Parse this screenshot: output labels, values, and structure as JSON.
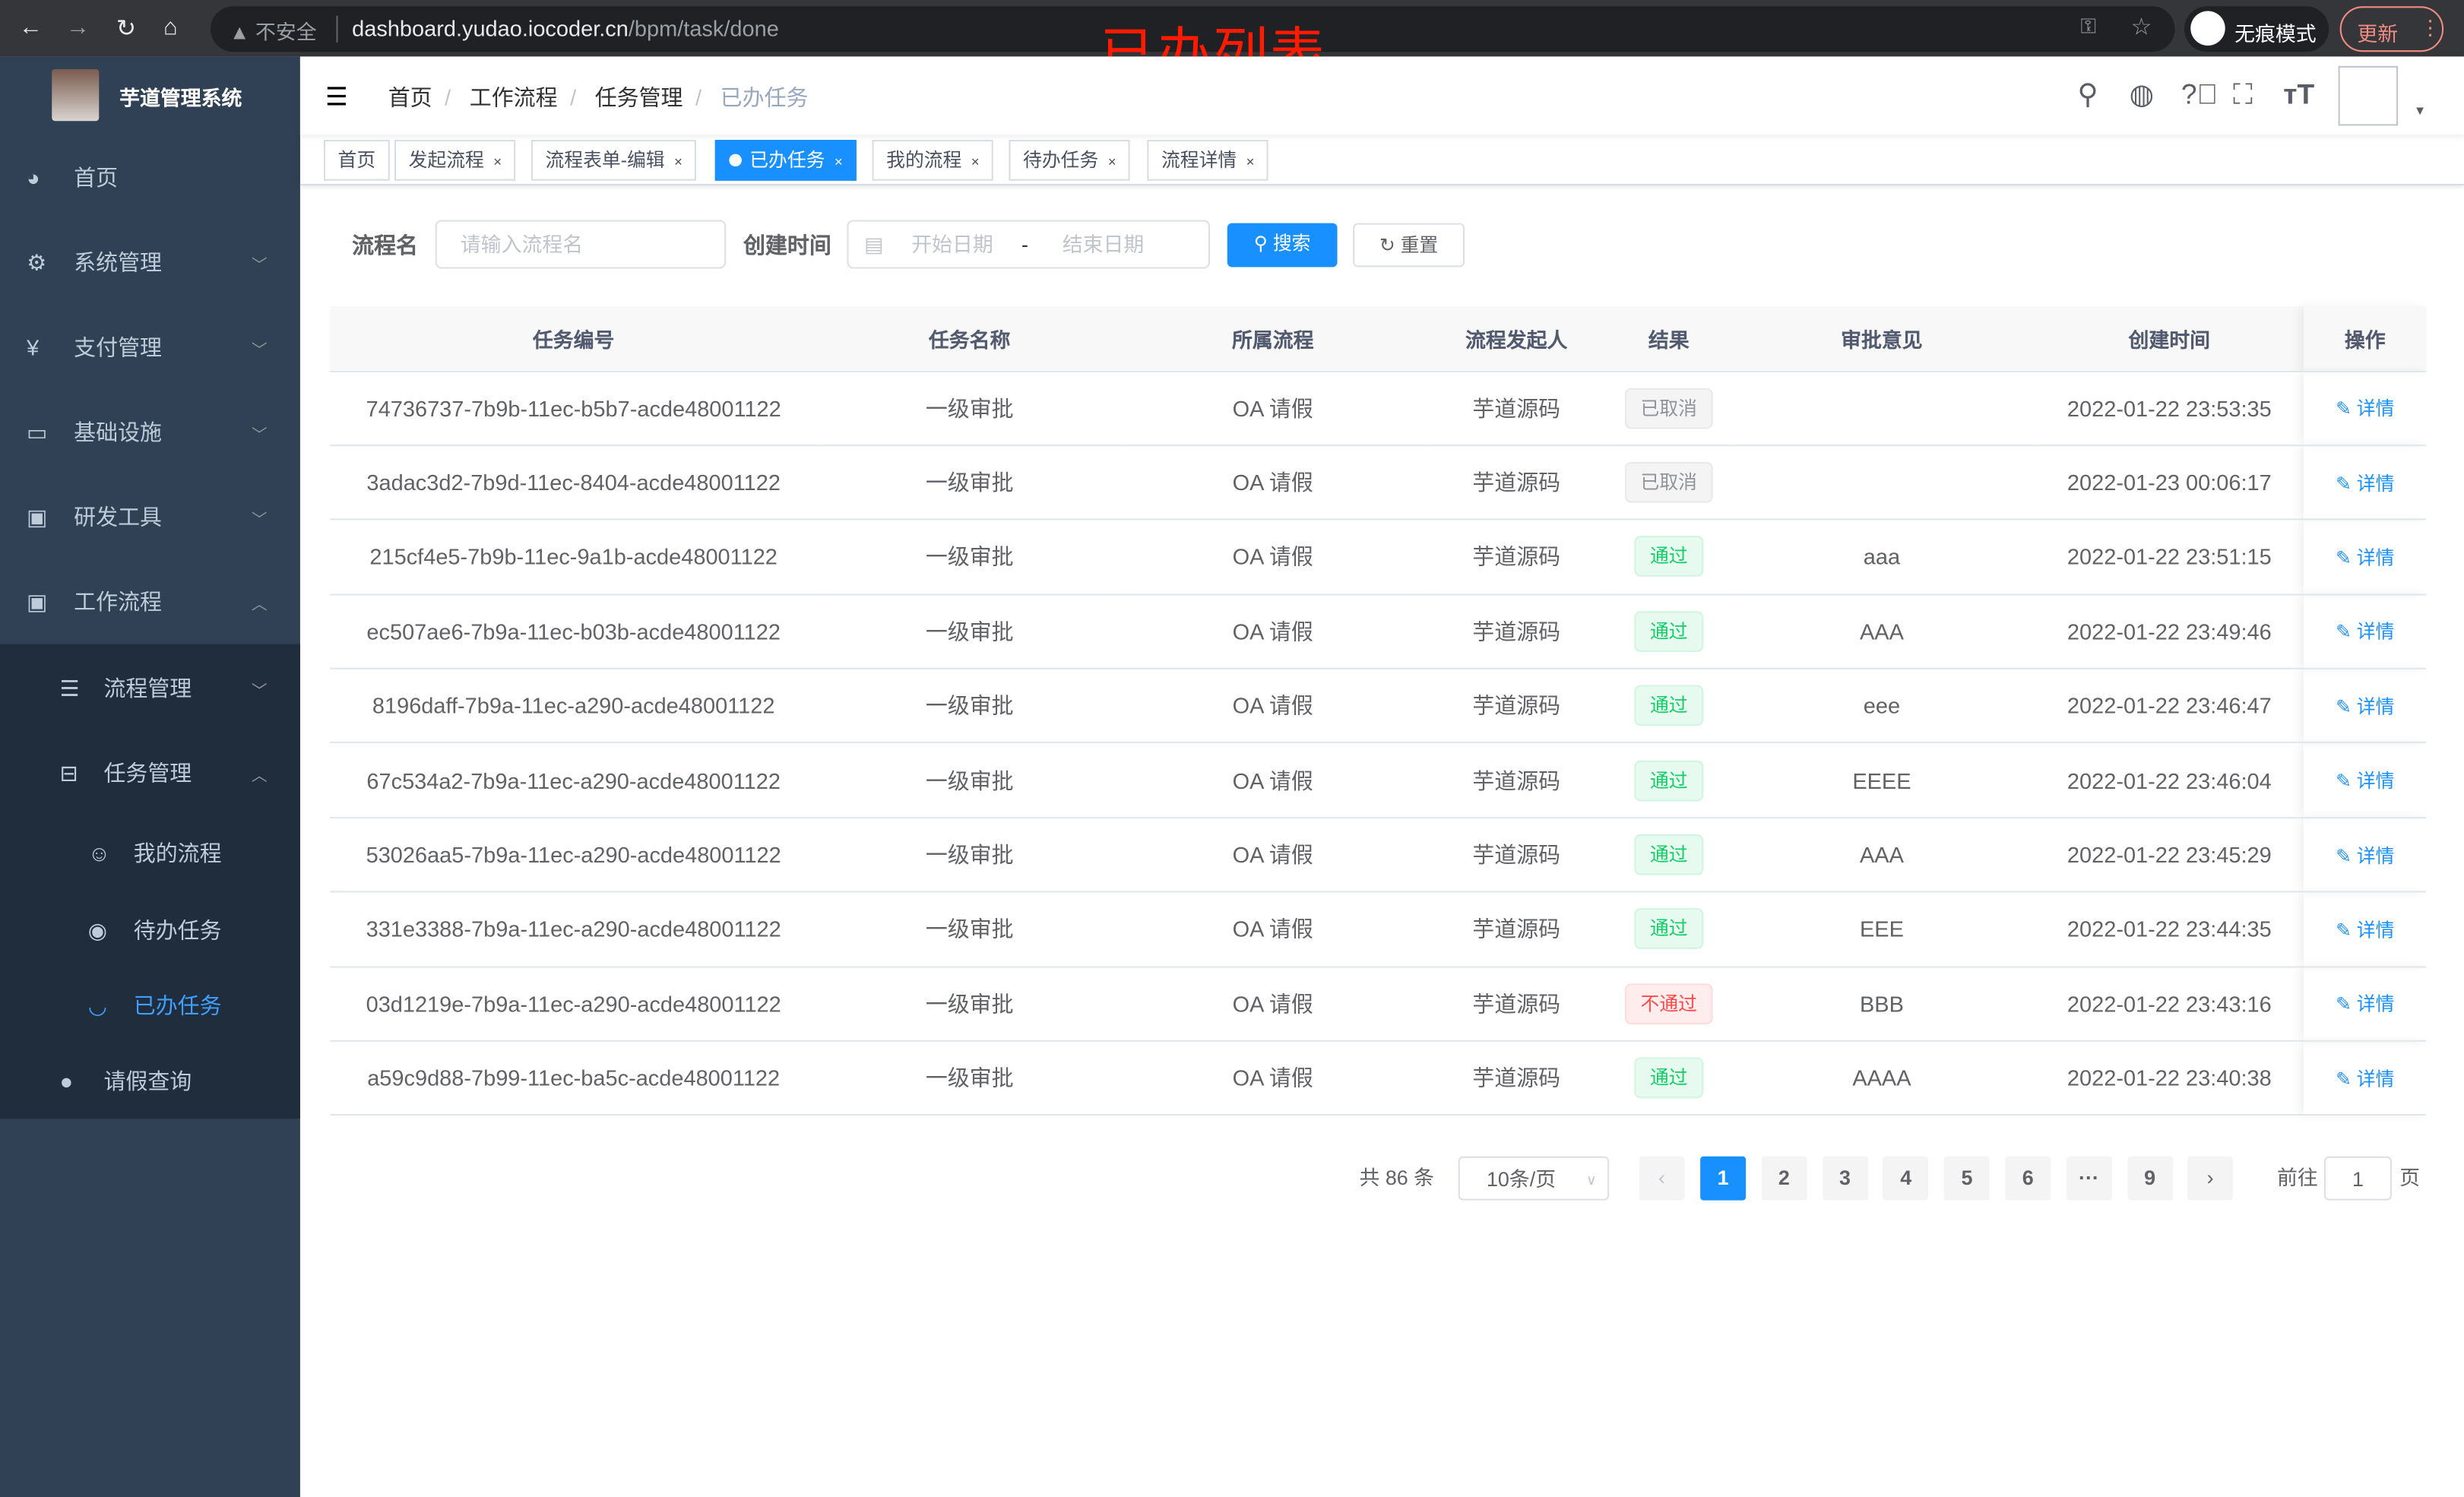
{
  "browser": {
    "security": "不安全",
    "url_host": "dashboard.yudao.iocoder.cn",
    "url_path": "/bpm/task/done",
    "incognito": "无痕模式",
    "update": "更新"
  },
  "overlay_caption": "已办列表",
  "sidebar": {
    "title": "芋道管理系统",
    "items": [
      {
        "label": "首页",
        "icon": "dashboard-icon"
      },
      {
        "label": "系统管理",
        "icon": "gear-icon"
      },
      {
        "label": "支付管理",
        "icon": "yen-icon"
      },
      {
        "label": "基础设施",
        "icon": "monitor-icon"
      },
      {
        "label": "研发工具",
        "icon": "toolbox-icon"
      },
      {
        "label": "工作流程",
        "icon": "toolbox-icon"
      }
    ],
    "sub": [
      {
        "label": "流程管理",
        "icon": "list-icon"
      },
      {
        "label": "任务管理",
        "icon": "tree-icon"
      },
      {
        "label": "我的流程",
        "icon": "people-icon"
      },
      {
        "label": "待办任务",
        "icon": "eye-icon"
      },
      {
        "label": "已办任务",
        "icon": "closed-eye-icon"
      },
      {
        "label": "请假查询",
        "icon": "user-icon"
      }
    ],
    "active": "已办任务"
  },
  "breadcrumb": [
    "首页",
    "工作流程",
    "任务管理",
    "已办任务"
  ],
  "tags": [
    {
      "label": "首页"
    },
    {
      "label": "发起流程"
    },
    {
      "label": "流程表单-编辑"
    },
    {
      "label": "已办任务",
      "active": true
    },
    {
      "label": "我的流程"
    },
    {
      "label": "待办任务"
    },
    {
      "label": "流程详情"
    }
  ],
  "filter": {
    "name_label": "流程名",
    "name_placeholder": "请输入流程名",
    "time_label": "创建时间",
    "start_placeholder": "开始日期",
    "range_sep": "-",
    "end_placeholder": "结束日期",
    "search": "搜索",
    "reset": "重置"
  },
  "table": {
    "headers": [
      "任务编号",
      "任务名称",
      "所属流程",
      "流程发起人",
      "结果",
      "审批意见",
      "创建时间",
      "操作"
    ],
    "rows": [
      {
        "id": "74736737-7b9b-11ec-b5b7-acde48001122",
        "name": "一级审批",
        "process": "OA 请假",
        "starter": "芋道源码",
        "result": "已取消",
        "status": "cancel",
        "comment": "",
        "time": "2022-01-22 23:53:35",
        "action": "详情"
      },
      {
        "id": "3adac3d2-7b9d-11ec-8404-acde48001122",
        "name": "一级审批",
        "process": "OA 请假",
        "starter": "芋道源码",
        "result": "已取消",
        "status": "cancel",
        "comment": "",
        "time": "2022-01-23 00:06:17",
        "action": "详情"
      },
      {
        "id": "215cf4e5-7b9b-11ec-9a1b-acde48001122",
        "name": "一级审批",
        "process": "OA 请假",
        "starter": "芋道源码",
        "result": "通过",
        "status": "pass",
        "comment": "aaa",
        "time": "2022-01-22 23:51:15",
        "action": "详情"
      },
      {
        "id": "ec507ae6-7b9a-11ec-b03b-acde48001122",
        "name": "一级审批",
        "process": "OA 请假",
        "starter": "芋道源码",
        "result": "通过",
        "status": "pass",
        "comment": "AAA",
        "time": "2022-01-22 23:49:46",
        "action": "详情"
      },
      {
        "id": "8196daff-7b9a-11ec-a290-acde48001122",
        "name": "一级审批",
        "process": "OA 请假",
        "starter": "芋道源码",
        "result": "通过",
        "status": "pass",
        "comment": "eee",
        "time": "2022-01-22 23:46:47",
        "action": "详情"
      },
      {
        "id": "67c534a2-7b9a-11ec-a290-acde48001122",
        "name": "一级审批",
        "process": "OA 请假",
        "starter": "芋道源码",
        "result": "通过",
        "status": "pass",
        "comment": "EEEE",
        "time": "2022-01-22 23:46:04",
        "action": "详情"
      },
      {
        "id": "53026aa5-7b9a-11ec-a290-acde48001122",
        "name": "一级审批",
        "process": "OA 请假",
        "starter": "芋道源码",
        "result": "通过",
        "status": "pass",
        "comment": "AAA",
        "time": "2022-01-22 23:45:29",
        "action": "详情"
      },
      {
        "id": "331e3388-7b9a-11ec-a290-acde48001122",
        "name": "一级审批",
        "process": "OA 请假",
        "starter": "芋道源码",
        "result": "通过",
        "status": "pass",
        "comment": "EEE",
        "time": "2022-01-22 23:44:35",
        "action": "详情"
      },
      {
        "id": "03d1219e-7b9a-11ec-a290-acde48001122",
        "name": "一级审批",
        "process": "OA 请假",
        "starter": "芋道源码",
        "result": "不通过",
        "status": "fail",
        "comment": "BBB",
        "time": "2022-01-22 23:43:16",
        "action": "详情"
      },
      {
        "id": "a59c9d88-7b99-11ec-ba5c-acde48001122",
        "name": "一级审批",
        "process": "OA 请假",
        "starter": "芋道源码",
        "result": "通过",
        "status": "pass",
        "comment": "AAAA",
        "time": "2022-01-22 23:40:38",
        "action": "详情"
      }
    ]
  },
  "pagination": {
    "total": "共 86 条",
    "page_size": "10条/页",
    "pages": [
      "1",
      "2",
      "3",
      "4",
      "5",
      "6",
      "···",
      "9"
    ],
    "current": "1",
    "goto_label": "前往",
    "goto_value": "1",
    "page_suffix": "页"
  },
  "colors": {
    "sidebar": "#304156",
    "submenu": "#1f2d3d",
    "primary": "#1890ff",
    "active_menu": "#409eff"
  }
}
